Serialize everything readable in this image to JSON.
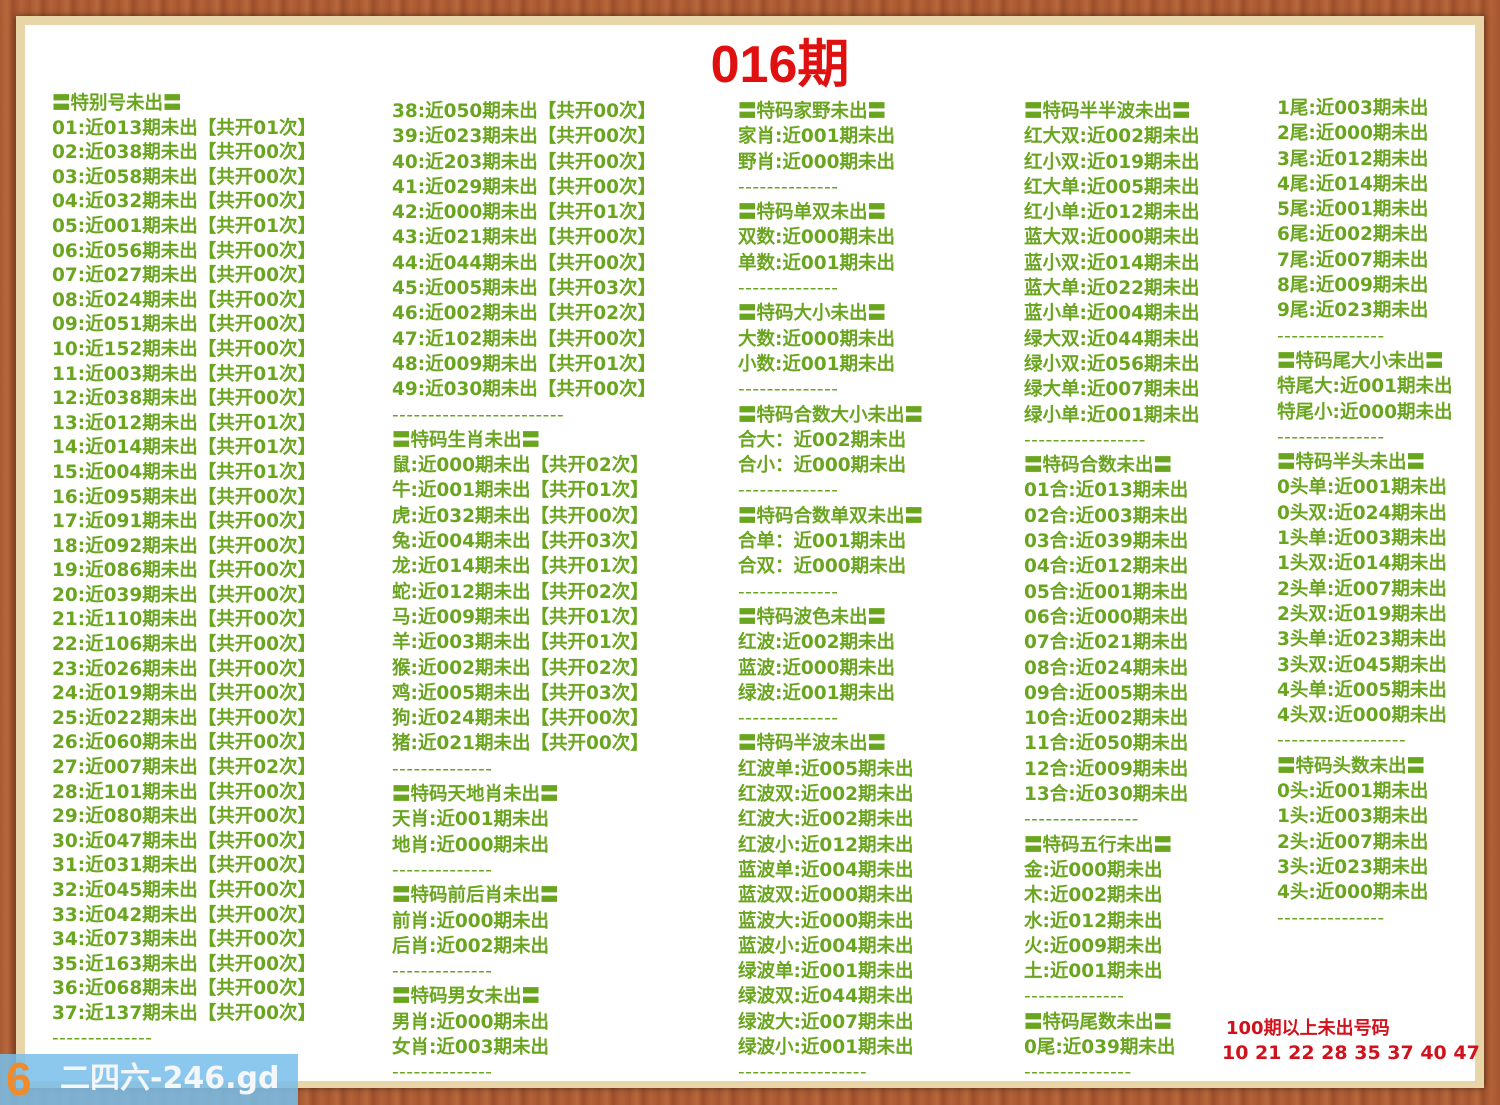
{
  "title": "016期",
  "columns": [
    {
      "lines": [
        "〓特别号未出〓",
        "01:近013期未出【共开01次】",
        "02:近038期未出【共开00次】",
        "03:近058期未出【共开00次】",
        "04:近032期未出【共开00次】",
        "05:近001期未出【共开01次】",
        "06:近056期未出【共开00次】",
        "07:近027期未出【共开00次】",
        "08:近024期未出【共开00次】",
        "09:近051期未出【共开00次】",
        "10:近152期未出【共开00次】",
        "11:近003期未出【共开01次】",
        "12:近038期未出【共开00次】",
        "13:近012期未出【共开01次】",
        "14:近014期未出【共开01次】",
        "15:近004期未出【共开01次】",
        "16:近095期未出【共开00次】",
        "17:近091期未出【共开00次】",
        "18:近092期未出【共开00次】",
        "19:近086期未出【共开00次】",
        "20:近039期未出【共开00次】",
        "21:近110期未出【共开00次】",
        "22:近106期未出【共开00次】",
        "23:近026期未出【共开00次】",
        "24:近019期未出【共开00次】",
        "25:近022期未出【共开00次】",
        "26:近060期未出【共开00次】",
        "27:近007期未出【共开02次】",
        "28:近101期未出【共开00次】",
        "29:近080期未出【共开00次】",
        "30:近047期未出【共开00次】",
        "31:近031期未出【共开00次】",
        "32:近045期未出【共开00次】",
        "33:近042期未出【共开00次】",
        "34:近073期未出【共开00次】",
        "35:近163期未出【共开00次】",
        "36:近068期未出【共开00次】",
        "37:近137期未出【共开00次】",
        "--------------"
      ]
    },
    {
      "lines": [
        "38:近050期未出【共开00次】",
        "39:近023期未出【共开00次】",
        "40:近203期未出【共开00次】",
        "41:近029期未出【共开00次】",
        "42:近000期未出【共开01次】",
        "43:近021期未出【共开00次】",
        "44:近044期未出【共开00次】",
        "45:近005期未出【共开03次】",
        "46:近002期未出【共开02次】",
        "47:近102期未出【共开00次】",
        "48:近009期未出【共开01次】",
        "49:近030期未出【共开00次】",
        "------------------------",
        "〓特码生肖未出〓",
        "鼠:近000期未出【共开02次】",
        "牛:近001期未出【共开01次】",
        "虎:近032期未出【共开00次】",
        "兔:近004期未出【共开03次】",
        "龙:近014期未出【共开01次】",
        "蛇:近012期未出【共开02次】",
        "马:近009期未出【共开01次】",
        "羊:近003期未出【共开01次】",
        "猴:近002期未出【共开02次】",
        "鸡:近005期未出【共开03次】",
        "狗:近024期未出【共开00次】",
        "猪:近021期未出【共开00次】",
        "--------------",
        "〓特码天地肖未出〓",
        "天肖:近001期未出",
        "地肖:近000期未出",
        "--------------",
        "〓特码前后肖未出〓",
        "前肖:近000期未出",
        "后肖:近002期未出",
        "--------------",
        "〓特码男女未出〓",
        "男肖:近000期未出",
        "女肖:近003期未出",
        "--------------"
      ]
    },
    {
      "lines": [
        "〓特码家野未出〓",
        "家肖:近001期未出",
        "野肖:近000期未出",
        "--------------",
        "〓特码单双未出〓",
        "双数:近000期未出",
        "单数:近001期未出",
        "--------------",
        "〓特码大小未出〓",
        "大数:近000期未出",
        "小数:近001期未出",
        "--------------",
        "〓特码合数大小未出〓",
        "合大：近002期未出",
        "合小：近000期未出",
        "--------------",
        "〓特码合数单双未出〓",
        "合单：近001期未出",
        "合双：近000期未出",
        "--------------",
        "〓特码波色未出〓",
        "红波:近002期未出",
        "蓝波:近000期未出",
        "绿波:近001期未出",
        "--------------",
        "〓特码半波未出〓",
        "红波单:近005期未出",
        "红波双:近002期未出",
        "红波大:近002期未出",
        "红波小:近012期未出",
        "蓝波单:近004期未出",
        "蓝波双:近000期未出",
        "蓝波大:近000期未出",
        "蓝波小:近004期未出",
        "绿波单:近001期未出",
        "绿波双:近044期未出",
        "绿波大:近007期未出",
        "绿波小:近001期未出",
        "------------------"
      ]
    },
    {
      "lines": [
        "〓特码半半波未出〓",
        "红大双:近002期未出",
        "红小双:近019期未出",
        "红大单:近005期未出",
        "红小单:近012期未出",
        "蓝大双:近000期未出",
        "蓝小双:近014期未出",
        "蓝大单:近022期未出",
        "蓝小单:近004期未出",
        "绿大双:近044期未出",
        "绿小双:近056期未出",
        "绿大单:近007期未出",
        "绿小单:近001期未出",
        "-----------------",
        "〓特码合数未出〓",
        "01合:近013期未出",
        "02合:近003期未出",
        "03合:近039期未出",
        "04合:近012期未出",
        "05合:近001期未出",
        "06合:近000期未出",
        "07合:近021期未出",
        "08合:近024期未出",
        "09合:近005期未出",
        "10合:近002期未出",
        "11合:近050期未出",
        "12合:近009期未出",
        "13合:近030期未出",
        "----------------",
        "〓特码五行未出〓",
        "金:近000期未出",
        "木:近002期未出",
        "水:近012期未出",
        "火:近009期未出",
        "土:近001期未出",
        "--------------",
        "〓特码尾数未出〓",
        "0尾:近039期未出",
        "---------------"
      ]
    },
    {
      "lines": [
        "1尾:近003期未出",
        "2尾:近000期未出",
        "3尾:近012期未出",
        "4尾:近014期未出",
        "5尾:近001期未出",
        "6尾:近002期未出",
        "7尾:近007期未出",
        "8尾:近009期未出",
        "9尾:近023期未出",
        "---------------",
        "〓特码尾大小未出〓",
        "特尾大:近001期未出",
        "特尾小:近000期未出",
        "---------------",
        "〓特码半头未出〓",
        "0头单:近001期未出",
        "0头双:近024期未出",
        "1头单:近003期未出",
        "1头双:近014期未出",
        "2头单:近007期未出",
        "2头双:近019期未出",
        "3头单:近023期未出",
        "3头双:近045期未出",
        "4头单:近005期未出",
        "4头双:近000期未出",
        "------------------",
        "〓特码头数未出〓",
        "0头:近001期未出",
        "1头:近003期未出",
        "2头:近007期未出",
        "3头:近023期未出",
        "4头:近000期未出",
        "---------------"
      ]
    }
  ],
  "over100": {
    "label": "100期以上未出号码",
    "numbers": "10 21 22 28 35 37 40 47"
  },
  "watermark": {
    "logo": "6",
    "text": "二四六-246.gd"
  },
  "colors": {
    "text_green": "#6aa51f",
    "title_red": "#e01010",
    "highlight_red": "#d0121c"
  }
}
